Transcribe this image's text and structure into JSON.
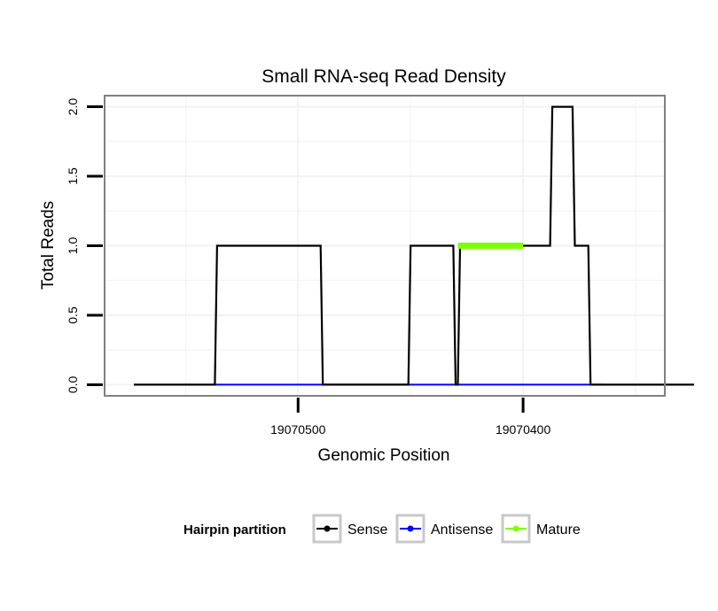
{
  "chart_data": {
    "type": "line",
    "title": "Small RNA-seq Read Density",
    "xlabel": "Genomic Position",
    "ylabel": "Total Reads",
    "x_reversed": true,
    "xlim": [
      19070586,
      19070337
    ],
    "ylim": [
      -0.08,
      2.08
    ],
    "x_ticks": [
      19070500,
      19070400
    ],
    "x_tick_labels": [
      "19070500",
      "19070400"
    ],
    "y_ticks": [
      0.0,
      0.5,
      1.0,
      1.5,
      2.0
    ],
    "y_tick_labels": [
      "0.0",
      "0.5",
      "1.0",
      "1.5",
      "2.0"
    ],
    "grid": true,
    "legend": {
      "title": "Hairpin partition",
      "position": "bottom",
      "entries": [
        "Sense",
        "Antisense",
        "Mature"
      ]
    },
    "colors": {
      "Sense": "#000000",
      "Antisense": "#0000ff",
      "Mature": "#7fff00",
      "panel_border": "#808080",
      "grid": "#f2f2f2"
    },
    "series": [
      {
        "name": "Sense",
        "x": [
          19070573,
          19070537,
          19070536,
          19070490,
          19070489,
          19070451,
          19070450,
          19070431,
          19070430,
          19070429,
          19070428,
          19070388,
          19070387,
          19070378,
          19070377,
          19070371,
          19070370,
          19070365,
          19070364,
          19070324
        ],
        "y": [
          0,
          0,
          1,
          1,
          0,
          0,
          1,
          1,
          0,
          0,
          1,
          1,
          2,
          2,
          1,
          1,
          0,
          0,
          0,
          0
        ]
      },
      {
        "name": "Antisense",
        "x": [
          19070537,
          19070364
        ],
        "y": [
          0,
          0
        ]
      },
      {
        "name": "Mature",
        "x": [
          19070429,
          19070400
        ],
        "y": [
          1,
          1
        ]
      }
    ]
  }
}
